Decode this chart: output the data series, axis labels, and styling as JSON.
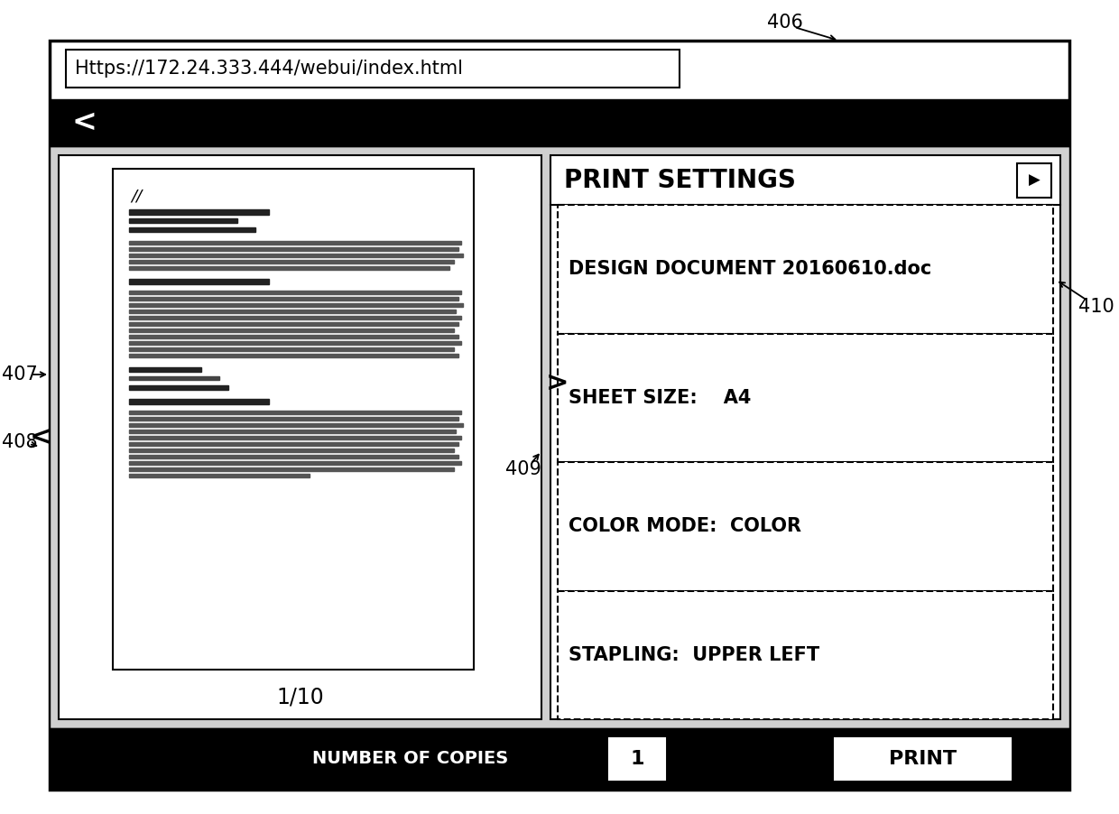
{
  "bg_color": "#ffffff",
  "url_text": "Https://172.24.333.444/webui/index.html",
  "print_settings_title": "PRINT SETTINGS",
  "settings_items": [
    "DESIGN DOCUMENT 20160610.doc",
    "SHEET SIZE:    A4",
    "COLOR MODE:  COLOR",
    "STAPLING:  UPPER LEFT"
  ],
  "page_counter": "1/10",
  "num_copies_label": "NUMBER OF COPIES",
  "num_copies_value": "1",
  "print_button": "PRINT",
  "back_arrow": "<",
  "fwd_arrow": ">",
  "label_406": "406",
  "label_407": "407",
  "label_408": "408",
  "label_409": "409",
  "label_410": "410",
  "fw": 1240,
  "fh": 902
}
